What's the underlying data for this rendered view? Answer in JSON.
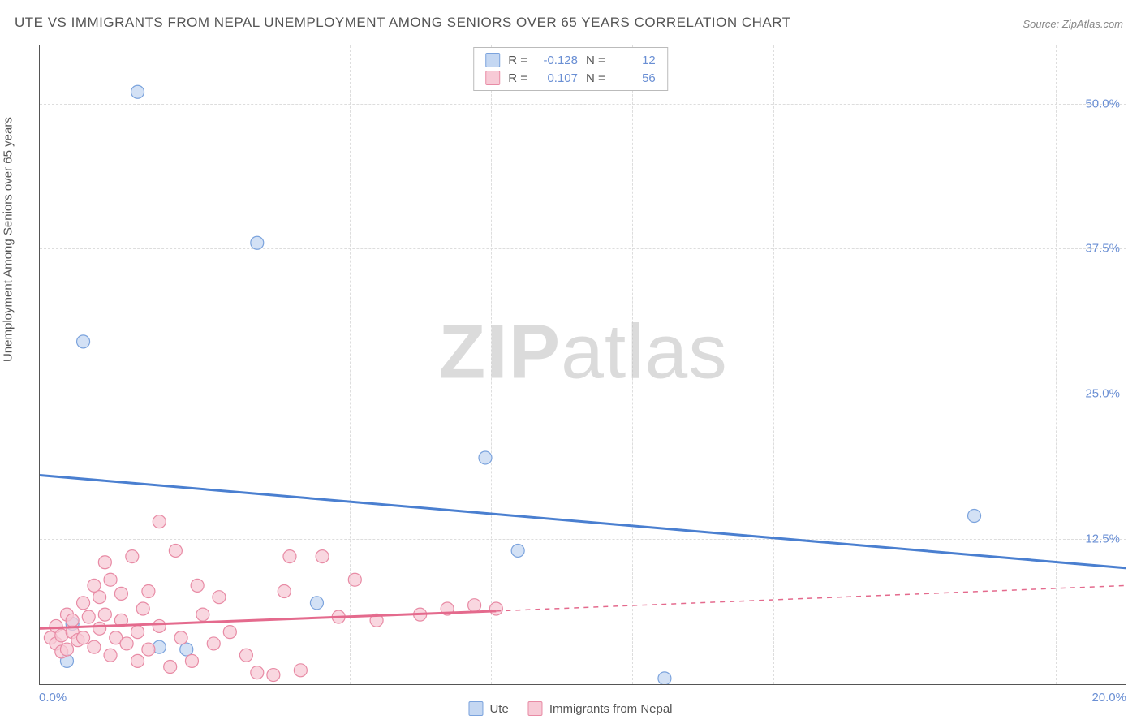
{
  "title": "UTE VS IMMIGRANTS FROM NEPAL UNEMPLOYMENT AMONG SENIORS OVER 65 YEARS CORRELATION CHART",
  "source": "Source: ZipAtlas.com",
  "watermark_bold": "ZIP",
  "watermark_light": "atlas",
  "y_axis_title": "Unemployment Among Seniors over 65 years",
  "chart": {
    "type": "scatter",
    "xlim": [
      0,
      20
    ],
    "ylim": [
      0,
      55
    ],
    "y_ticks": [
      12.5,
      25.0,
      37.5,
      50.0
    ],
    "y_tick_labels": [
      "12.5%",
      "25.0%",
      "37.5%",
      "50.0%"
    ],
    "x_range_labels": {
      "min": "0.0%",
      "max": "20.0%"
    },
    "vgrid_x": [
      3.1,
      5.7,
      8.3,
      10.9,
      13.5,
      16.1,
      18.7
    ],
    "background_color": "#ffffff",
    "grid_color": "#dddddd",
    "axis_color": "#555555",
    "marker_radius": 8,
    "marker_stroke_width": 1.2,
    "trend_line_width": 3,
    "series": [
      {
        "name": "Ute",
        "label": "Ute",
        "fill": "#c4d7f2",
        "stroke": "#7ba3dd",
        "line_color": "#4a7fd0",
        "R_label": "R =",
        "R_value": "-0.128",
        "N_label": "N =",
        "N_value": "12",
        "trend": {
          "x1": 0,
          "y1": 18.0,
          "x2": 20,
          "y2": 10.0,
          "dash": "none"
        },
        "points": [
          {
            "x": 0.8,
            "y": 29.5
          },
          {
            "x": 1.8,
            "y": 51.0
          },
          {
            "x": 4.0,
            "y": 38.0
          },
          {
            "x": 8.2,
            "y": 19.5
          },
          {
            "x": 8.8,
            "y": 11.5
          },
          {
            "x": 5.1,
            "y": 7.0
          },
          {
            "x": 2.7,
            "y": 3.0
          },
          {
            "x": 2.2,
            "y": 3.2
          },
          {
            "x": 11.5,
            "y": 0.5
          },
          {
            "x": 17.2,
            "y": 14.5
          },
          {
            "x": 0.5,
            "y": 2.0
          },
          {
            "x": 0.6,
            "y": 5.2
          }
        ]
      },
      {
        "name": "Immigrants from Nepal",
        "label": "Immigrants from Nepal",
        "fill": "#f7cad6",
        "stroke": "#e88ba5",
        "line_color": "#e46a8d",
        "R_label": "R =",
        "R_value": "0.107",
        "N_label": "N =",
        "N_value": "56",
        "trend": {
          "x1": 0,
          "y1": 4.8,
          "x2": 8.4,
          "y2": 6.3,
          "dash": "none"
        },
        "trend_ext": {
          "x1": 8.4,
          "y1": 6.3,
          "x2": 20,
          "y2": 8.5,
          "dash": "6,6"
        },
        "points": [
          {
            "x": 0.2,
            "y": 4.0
          },
          {
            "x": 0.3,
            "y": 3.5
          },
          {
            "x": 0.3,
            "y": 5.0
          },
          {
            "x": 0.4,
            "y": 4.2
          },
          {
            "x": 0.4,
            "y": 2.8
          },
          {
            "x": 0.5,
            "y": 6.0
          },
          {
            "x": 0.5,
            "y": 3.0
          },
          {
            "x": 0.6,
            "y": 4.5
          },
          {
            "x": 0.6,
            "y": 5.5
          },
          {
            "x": 0.7,
            "y": 3.8
          },
          {
            "x": 0.8,
            "y": 7.0
          },
          {
            "x": 0.8,
            "y": 4.0
          },
          {
            "x": 0.9,
            "y": 5.8
          },
          {
            "x": 1.0,
            "y": 8.5
          },
          {
            "x": 1.0,
            "y": 3.2
          },
          {
            "x": 1.1,
            "y": 4.8
          },
          {
            "x": 1.1,
            "y": 7.5
          },
          {
            "x": 1.2,
            "y": 10.5
          },
          {
            "x": 1.2,
            "y": 6.0
          },
          {
            "x": 1.3,
            "y": 2.5
          },
          {
            "x": 1.3,
            "y": 9.0
          },
          {
            "x": 1.4,
            "y": 4.0
          },
          {
            "x": 1.5,
            "y": 5.5
          },
          {
            "x": 1.5,
            "y": 7.8
          },
          {
            "x": 1.6,
            "y": 3.5
          },
          {
            "x": 1.7,
            "y": 11.0
          },
          {
            "x": 1.8,
            "y": 4.5
          },
          {
            "x": 1.8,
            "y": 2.0
          },
          {
            "x": 1.9,
            "y": 6.5
          },
          {
            "x": 2.0,
            "y": 8.0
          },
          {
            "x": 2.0,
            "y": 3.0
          },
          {
            "x": 2.2,
            "y": 14.0
          },
          {
            "x": 2.2,
            "y": 5.0
          },
          {
            "x": 2.4,
            "y": 1.5
          },
          {
            "x": 2.5,
            "y": 11.5
          },
          {
            "x": 2.6,
            "y": 4.0
          },
          {
            "x": 2.8,
            "y": 2.0
          },
          {
            "x": 2.9,
            "y": 8.5
          },
          {
            "x": 3.0,
            "y": 6.0
          },
          {
            "x": 3.2,
            "y": 3.5
          },
          {
            "x": 3.3,
            "y": 7.5
          },
          {
            "x": 3.5,
            "y": 4.5
          },
          {
            "x": 3.8,
            "y": 2.5
          },
          {
            "x": 4.0,
            "y": 1.0
          },
          {
            "x": 4.3,
            "y": 0.8
          },
          {
            "x": 4.5,
            "y": 8.0
          },
          {
            "x": 4.6,
            "y": 11.0
          },
          {
            "x": 4.8,
            "y": 1.2
          },
          {
            "x": 5.2,
            "y": 11.0
          },
          {
            "x": 5.5,
            "y": 5.8
          },
          {
            "x": 5.8,
            "y": 9.0
          },
          {
            "x": 6.2,
            "y": 5.5
          },
          {
            "x": 7.0,
            "y": 6.0
          },
          {
            "x": 7.5,
            "y": 6.5
          },
          {
            "x": 8.0,
            "y": 6.8
          },
          {
            "x": 8.4,
            "y": 6.5
          }
        ]
      }
    ]
  }
}
